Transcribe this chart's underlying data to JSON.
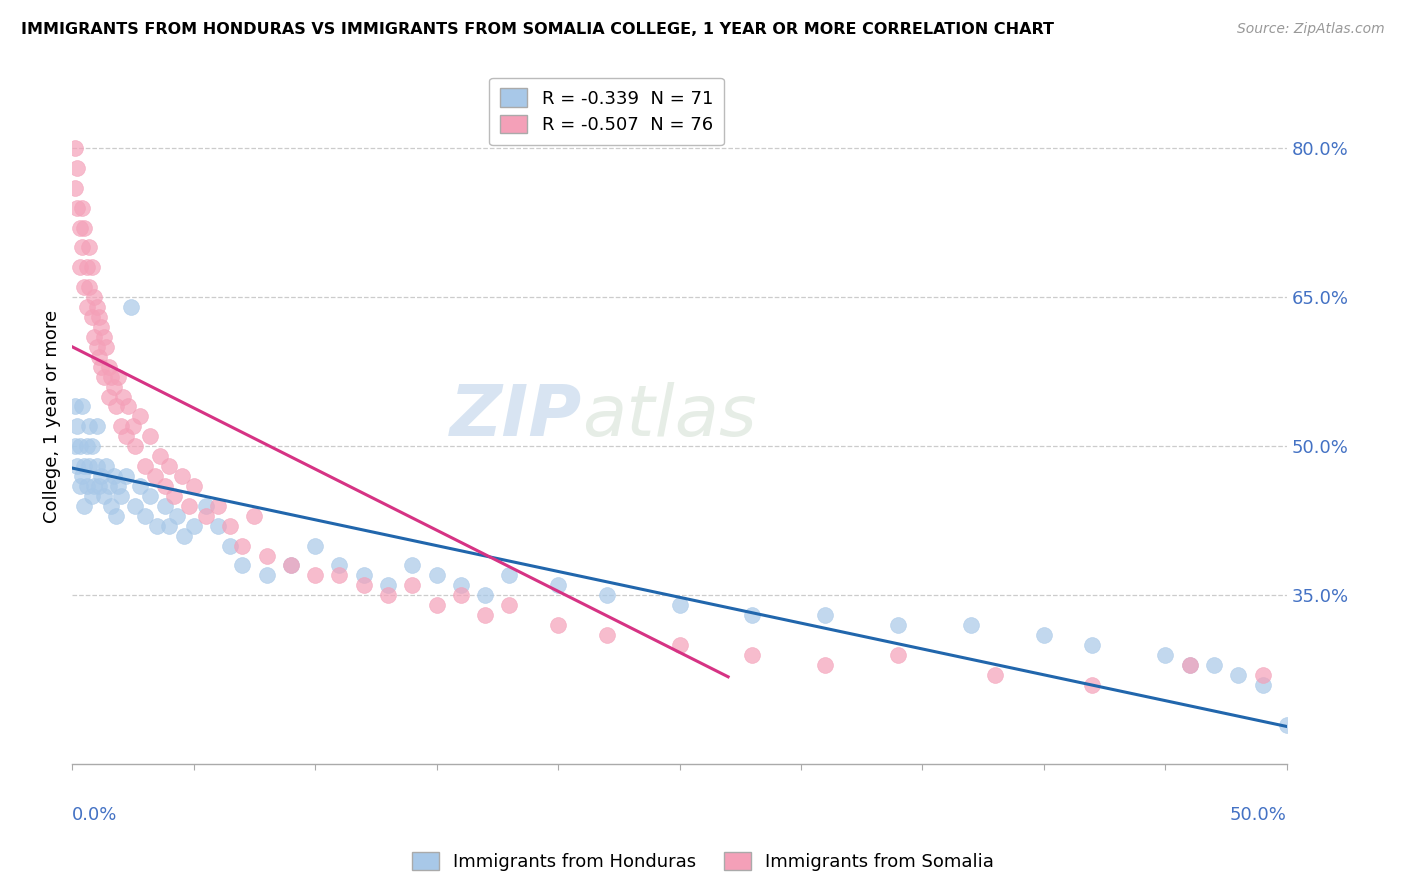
{
  "title": "IMMIGRANTS FROM HONDURAS VS IMMIGRANTS FROM SOMALIA COLLEGE, 1 YEAR OR MORE CORRELATION CHART",
  "source": "Source: ZipAtlas.com",
  "ylabel": "College, 1 year or more",
  "legend_line1": "R = -0.339  N = 71",
  "legend_line2": "R = -0.507  N = 76",
  "legend_label1": "Immigrants from Honduras",
  "legend_label2": "Immigrants from Somalia",
  "blue_color": "#a8c8e8",
  "pink_color": "#f4a0b8",
  "line_blue": "#2166ac",
  "line_pink": "#d63384",
  "watermark_zip": "ZIP",
  "watermark_atlas": "atlas",
  "xmin": 0.0,
  "xmax": 0.5,
  "ymin": 0.18,
  "ymax": 0.88,
  "right_ytick_vals": [
    0.35,
    0.5,
    0.65,
    0.8
  ],
  "right_ytick_labels": [
    "35.0%",
    "50.0%",
    "65.0%",
    "80.0%"
  ],
  "honduras_x": [
    0.001,
    0.001,
    0.002,
    0.002,
    0.003,
    0.003,
    0.004,
    0.004,
    0.005,
    0.005,
    0.006,
    0.006,
    0.007,
    0.007,
    0.008,
    0.008,
    0.009,
    0.01,
    0.01,
    0.011,
    0.012,
    0.013,
    0.014,
    0.015,
    0.016,
    0.017,
    0.018,
    0.019,
    0.02,
    0.022,
    0.024,
    0.026,
    0.028,
    0.03,
    0.032,
    0.035,
    0.038,
    0.04,
    0.043,
    0.046,
    0.05,
    0.055,
    0.06,
    0.065,
    0.07,
    0.08,
    0.09,
    0.1,
    0.11,
    0.12,
    0.13,
    0.14,
    0.15,
    0.16,
    0.17,
    0.18,
    0.2,
    0.22,
    0.25,
    0.28,
    0.31,
    0.34,
    0.37,
    0.4,
    0.42,
    0.45,
    0.46,
    0.47,
    0.48,
    0.49,
    0.5
  ],
  "honduras_y": [
    0.5,
    0.54,
    0.48,
    0.52,
    0.46,
    0.5,
    0.47,
    0.54,
    0.48,
    0.44,
    0.5,
    0.46,
    0.52,
    0.48,
    0.45,
    0.5,
    0.46,
    0.48,
    0.52,
    0.46,
    0.47,
    0.45,
    0.48,
    0.46,
    0.44,
    0.47,
    0.43,
    0.46,
    0.45,
    0.47,
    0.64,
    0.44,
    0.46,
    0.43,
    0.45,
    0.42,
    0.44,
    0.42,
    0.43,
    0.41,
    0.42,
    0.44,
    0.42,
    0.4,
    0.38,
    0.37,
    0.38,
    0.4,
    0.38,
    0.37,
    0.36,
    0.38,
    0.37,
    0.36,
    0.35,
    0.37,
    0.36,
    0.35,
    0.34,
    0.33,
    0.33,
    0.32,
    0.32,
    0.31,
    0.3,
    0.29,
    0.28,
    0.28,
    0.27,
    0.26,
    0.22
  ],
  "somalia_x": [
    0.001,
    0.001,
    0.002,
    0.002,
    0.003,
    0.003,
    0.004,
    0.004,
    0.005,
    0.005,
    0.006,
    0.006,
    0.007,
    0.007,
    0.008,
    0.008,
    0.009,
    0.009,
    0.01,
    0.01,
    0.011,
    0.011,
    0.012,
    0.012,
    0.013,
    0.013,
    0.014,
    0.015,
    0.015,
    0.016,
    0.017,
    0.018,
    0.019,
    0.02,
    0.021,
    0.022,
    0.023,
    0.025,
    0.026,
    0.028,
    0.03,
    0.032,
    0.034,
    0.036,
    0.038,
    0.04,
    0.042,
    0.045,
    0.048,
    0.05,
    0.055,
    0.06,
    0.065,
    0.07,
    0.075,
    0.08,
    0.09,
    0.1,
    0.11,
    0.12,
    0.13,
    0.14,
    0.15,
    0.16,
    0.17,
    0.18,
    0.2,
    0.22,
    0.25,
    0.28,
    0.31,
    0.34,
    0.38,
    0.42,
    0.46,
    0.49
  ],
  "somalia_y": [
    0.76,
    0.8,
    0.74,
    0.78,
    0.72,
    0.68,
    0.74,
    0.7,
    0.66,
    0.72,
    0.68,
    0.64,
    0.7,
    0.66,
    0.63,
    0.68,
    0.65,
    0.61,
    0.64,
    0.6,
    0.63,
    0.59,
    0.62,
    0.58,
    0.61,
    0.57,
    0.6,
    0.58,
    0.55,
    0.57,
    0.56,
    0.54,
    0.57,
    0.52,
    0.55,
    0.51,
    0.54,
    0.52,
    0.5,
    0.53,
    0.48,
    0.51,
    0.47,
    0.49,
    0.46,
    0.48,
    0.45,
    0.47,
    0.44,
    0.46,
    0.43,
    0.44,
    0.42,
    0.4,
    0.43,
    0.39,
    0.38,
    0.37,
    0.37,
    0.36,
    0.35,
    0.36,
    0.34,
    0.35,
    0.33,
    0.34,
    0.32,
    0.31,
    0.3,
    0.29,
    0.28,
    0.29,
    0.27,
    0.26,
    0.28,
    0.27
  ],
  "honduras_line_x0": 0.0,
  "honduras_line_y0": 0.478,
  "honduras_line_x1": 0.5,
  "honduras_line_y1": 0.218,
  "somalia_line_x0": 0.0,
  "somalia_line_y0": 0.6,
  "somalia_line_x1": 0.27,
  "somalia_line_y1": 0.268
}
